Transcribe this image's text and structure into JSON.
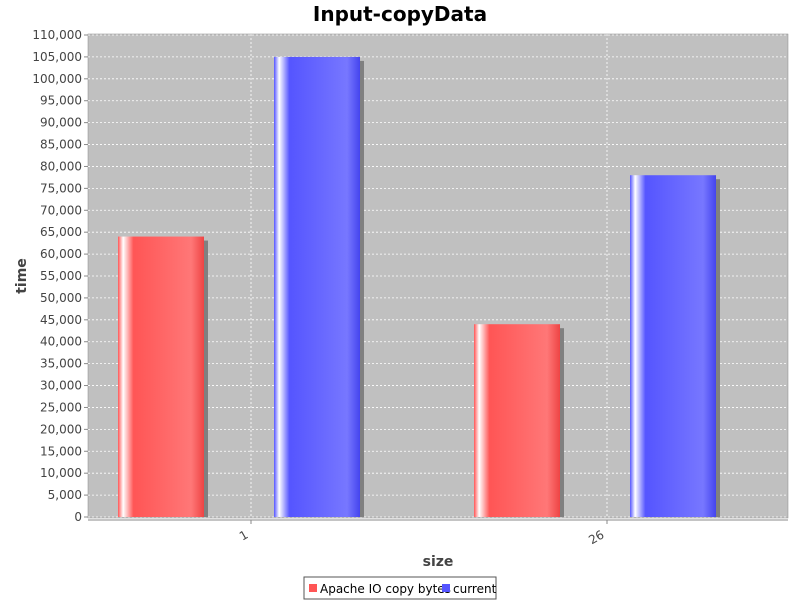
{
  "chart_data": {
    "type": "bar",
    "title": "Input-copyData",
    "xlabel": "size",
    "ylabel": "time",
    "categories": [
      "1",
      "26"
    ],
    "series": [
      {
        "name": "Apache IO copy bytes",
        "color": "#ff5555",
        "values": [
          64000,
          44000
        ]
      },
      {
        "name": "current",
        "color": "#5555ff",
        "values": [
          105000,
          78000
        ]
      }
    ],
    "ylim": [
      0,
      110000
    ],
    "y_tick_step": 5000,
    "y_tick_labels": [
      "0",
      "5,000",
      "10,000",
      "15,000",
      "20,000",
      "25,000",
      "30,000",
      "35,000",
      "40,000",
      "45,000",
      "50,000",
      "55,000",
      "60,000",
      "65,000",
      "70,000",
      "75,000",
      "80,000",
      "85,000",
      "90,000",
      "95,000",
      "100,000",
      "105,000",
      "110,000"
    ],
    "grid": true,
    "legend_position": "bottom",
    "plot_background": "#c0c0c0"
  }
}
